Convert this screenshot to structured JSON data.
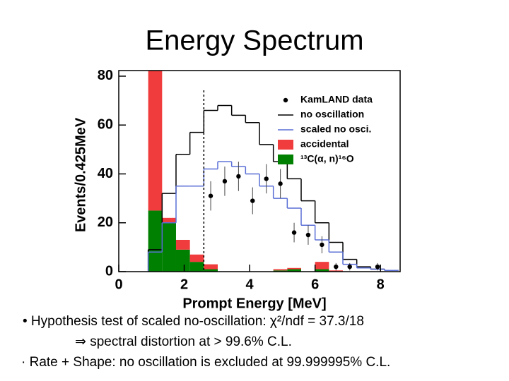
{
  "chart_data": {
    "type": "histogram",
    "title": "Energy Spectrum",
    "x_label": "Prompt Energy [MeV]",
    "y_label": "Events/0.425MeV",
    "xlim": [
      0,
      8.6
    ],
    "ylim": [
      0,
      82.3
    ],
    "xticks": [
      0,
      2,
      4,
      6,
      8
    ],
    "yticks": [
      0,
      20,
      40,
      60,
      80
    ],
    "threshold": 2.6,
    "bins": [
      0.9,
      1.325,
      1.75,
      2.175,
      2.6,
      3.025,
      3.45,
      3.875,
      4.3,
      4.725,
      5.15,
      5.575,
      6.0,
      6.425,
      6.85,
      7.275,
      7.7,
      8.125,
      8.55
    ],
    "series": [
      {
        "name": "no oscillation",
        "color": "#000000",
        "style": "step",
        "values": [
          9,
          32,
          48,
          57,
          66,
          68,
          64,
          61,
          52,
          45,
          38,
          29,
          20,
          12,
          5,
          2,
          1,
          0.5
        ]
      },
      {
        "name": "scaled no osci.",
        "color": "#5a6fd6",
        "style": "step",
        "values": [
          8,
          20,
          35,
          35,
          42,
          45,
          43,
          40,
          35,
          30,
          26,
          19,
          13,
          8,
          3,
          1.5,
          1,
          0.5
        ]
      },
      {
        "name": "accidental",
        "color": "#f03c3c",
        "style": "fill",
        "values": [
          60,
          2,
          4,
          3,
          2,
          0,
          0,
          0,
          0,
          0.5,
          0.5,
          0,
          3,
          0.5,
          0,
          0,
          0,
          0
        ]
      },
      {
        "name": "¹³C(α, n)¹⁶O",
        "color": "#008000",
        "style": "fill",
        "values": [
          25,
          20,
          9,
          4,
          1,
          0,
          0,
          0,
          0,
          0.5,
          1,
          0,
          1,
          0,
          0,
          0,
          0,
          0
        ]
      }
    ],
    "stack_order": [
      3,
      2
    ],
    "points": {
      "name": "KamLAND data",
      "color": "#000000",
      "x": [
        2.81,
        3.24,
        3.66,
        4.09,
        4.51,
        4.94,
        5.36,
        5.79,
        6.21,
        6.64,
        7.06,
        7.91
      ],
      "values": [
        31,
        37,
        39,
        29,
        38,
        36,
        16,
        15,
        11,
        2,
        2,
        2
      ],
      "errors": [
        6,
        6,
        6,
        5.5,
        6,
        6,
        4,
        4,
        3.5,
        1.5,
        1.5,
        1.5
      ]
    },
    "notes": [
      "• Hypothesis test of scaled no-oscillation:  χ²/ndf = 37.3/18",
      "⇒ spectral distortion at > 99.6% C.L.",
      "· Rate + Shape: no oscillation is excluded at 99.999995% C.L."
    ]
  }
}
